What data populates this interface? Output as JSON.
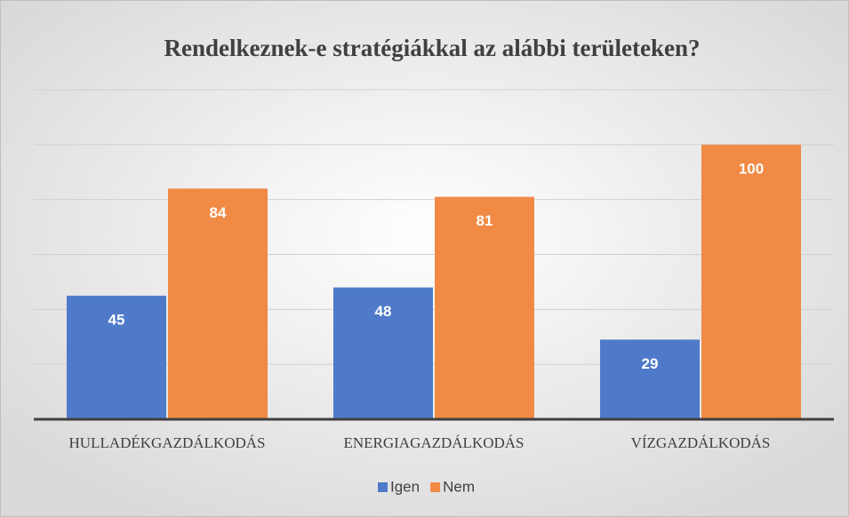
{
  "chart_data": {
    "type": "bar",
    "title": "Rendelkeznek-e stratégiákkal az alábbi területeken?",
    "categories": [
      "HULLADÉKGAZDÁLKODÁS",
      "ENERGIAGAZDÁLKODÁS",
      "VÍZGAZDÁLKODÁS"
    ],
    "series": [
      {
        "name": "Igen",
        "color": "#4f7ac9",
        "values": [
          45,
          48,
          29
        ]
      },
      {
        "name": "Nem",
        "color": "#f08a45",
        "values": [
          84,
          81,
          100
        ]
      }
    ],
    "ylim": [
      0,
      120
    ],
    "yticks": [
      0,
      20,
      40,
      60,
      80,
      100,
      120
    ],
    "grid": true,
    "legend": "bottom"
  }
}
